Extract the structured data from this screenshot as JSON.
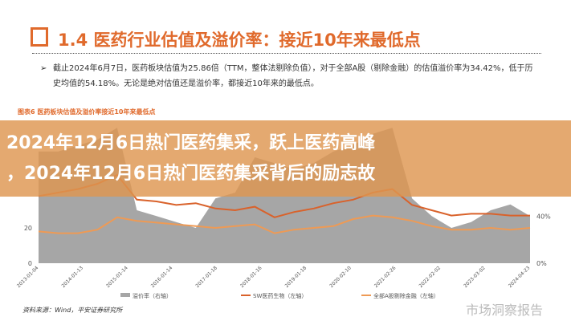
{
  "heading": {
    "title": "1.4 医药行业估值及溢价率：接近10年来最低点",
    "icon": "pencil-note-icon"
  },
  "bullet": {
    "line1": "截止2024年6月7日，医药板块估值为25.86倍（TTM，整体法剔除负值），对于全部A股（剔除金融）的估值溢价率为34.42%，低于历",
    "line2": "史均值的54.18%。无论是绝对估值还是溢价率，都接近10年来的最低点。"
  },
  "figure_caption": "图表6 医药板块估值及溢价率接近10年来最低点",
  "overlay": {
    "line1": "2024年12月6日热门医药集采，跃上医药高峰",
    "line2": "，2024年12月6日热门医药集采背后的励志故"
  },
  "source": "资料来源：Wind，平安证券研究所",
  "watermark": "市场洞察报告",
  "chart_data": {
    "type": "area",
    "x_ticks": [
      "2013-01-04",
      "2014-01-13",
      "2015-01-14",
      "2016-01-14",
      "2017-01-18",
      "2018-01-16",
      "2019-01-18",
      "2020-02-10",
      "2021-02-26",
      "2022-02-02",
      "2023-03-02",
      "2024-04-23"
    ],
    "left_axis": {
      "ticks": [
        "0",
        "20"
      ],
      "ylim": [
        0,
        80
      ]
    },
    "right_axis": {
      "ticks": [
        "0%",
        "40%"
      ],
      "ylim": [
        0,
        1.2
      ]
    },
    "series": [
      {
        "name": "溢价率（右轴）",
        "type": "area",
        "color": "#a6a6a6",
        "values": [
          0.95,
          0.95,
          1.0,
          1.05,
          1.15,
          0.45,
          0.4,
          0.35,
          0.3,
          0.55,
          0.6,
          0.9,
          0.85,
          0.8,
          0.85,
          0.95,
          1.0,
          1.1,
          1.15,
          0.55,
          0.4,
          0.3,
          0.35,
          0.45,
          0.5,
          0.4
        ]
      },
      {
        "name": "SW医药生物（左轴）",
        "type": "line",
        "color": "#d9622b",
        "values": [
          38,
          40,
          42,
          45,
          50,
          36,
          35,
          33,
          34,
          31,
          30,
          32,
          26,
          29,
          31,
          34,
          36,
          40,
          42,
          33,
          30,
          27,
          28,
          28,
          27,
          27
        ]
      },
      {
        "name": "全部A股剔除金融（左轴）",
        "type": "line",
        "color": "#ee9a55",
        "values": [
          18,
          17,
          17,
          19,
          26,
          24,
          23,
          22,
          21,
          20,
          21,
          22,
          17,
          19,
          20,
          21,
          25,
          27,
          26,
          24,
          21,
          19,
          19,
          20,
          19,
          20
        ]
      }
    ],
    "legend": "bottom"
  }
}
